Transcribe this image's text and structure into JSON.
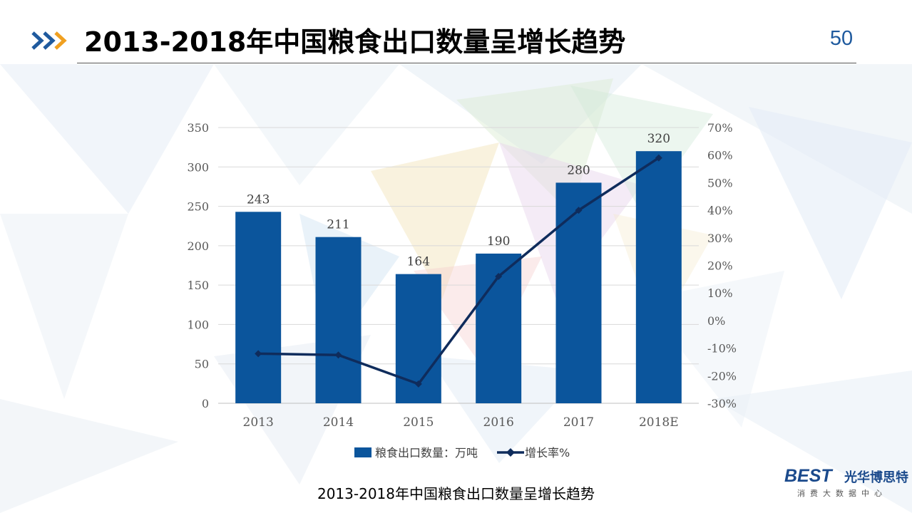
{
  "slide": {
    "title": "2013-2018年中国粮食出口数量呈增长趋势",
    "page_number": "50",
    "caption": "2013-2018年中国粮食出口数量呈增长趋势",
    "accent_color": "#1f5a9e",
    "chevron_colors": [
      "#1f5a9e",
      "#1f5a9e",
      "#f0a020"
    ]
  },
  "logo": {
    "mark": "BEST",
    "name": "光华博思特",
    "subtitle": "消费大数据中心"
  },
  "chart_data": {
    "type": "bar",
    "categories": [
      "2013",
      "2014",
      "2015",
      "2016",
      "2017",
      "2018E"
    ],
    "series": [
      {
        "name": "粮食出口数量：万吨",
        "type": "bar",
        "axis": "left",
        "color": "#0b559c",
        "values": [
          243,
          211,
          164,
          190,
          280,
          320
        ],
        "data_labels": [
          "243",
          "211",
          "164",
          "190",
          "280",
          "320"
        ]
      },
      {
        "name": "增长率%",
        "type": "line",
        "axis": "right",
        "color": "#0f2c5c",
        "marker": "diamond",
        "values": [
          -0.12,
          -0.125,
          -0.23,
          0.16,
          0.4,
          0.59
        ]
      }
    ],
    "left_axis": {
      "ylim": [
        0,
        350
      ],
      "ticks": [
        0,
        50,
        100,
        150,
        200,
        250,
        300,
        350
      ],
      "tick_labels": [
        "0",
        "50",
        "100",
        "150",
        "200",
        "250",
        "300",
        "350"
      ]
    },
    "right_axis": {
      "ylim": [
        -0.3,
        0.7
      ],
      "ticks": [
        -0.3,
        -0.2,
        -0.1,
        0,
        0.1,
        0.2,
        0.3,
        0.4,
        0.5,
        0.6,
        0.7
      ],
      "tick_labels": [
        "-30%",
        "-20%",
        "-10%",
        "0%",
        "10%",
        "20%",
        "30%",
        "40%",
        "50%",
        "60%",
        "70%"
      ]
    },
    "grid": true,
    "legend_position": "bottom"
  }
}
